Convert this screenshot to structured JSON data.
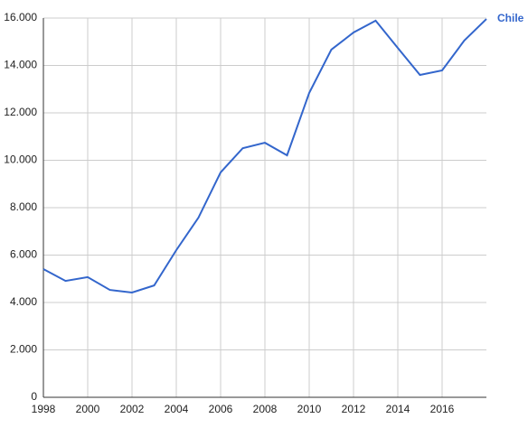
{
  "chart_data": {
    "type": "line",
    "x": [
      1998,
      1999,
      2000,
      2001,
      2002,
      2003,
      2004,
      2005,
      2006,
      2007,
      2008,
      2009,
      2010,
      2011,
      2012,
      2013,
      2014,
      2015,
      2016,
      2017,
      2018
    ],
    "series": [
      {
        "name": "Chile",
        "color": "#3366cc",
        "values": [
          5410,
          4910,
          5070,
          4530,
          4420,
          4720,
          6210,
          7580,
          9490,
          10510,
          10740,
          10210,
          12840,
          14670,
          15390,
          15890,
          14740,
          13600,
          13790,
          15050,
          15960
        ]
      }
    ],
    "xlim": [
      1998,
      2018
    ],
    "xticks": [
      1998,
      2000,
      2002,
      2004,
      2006,
      2008,
      2010,
      2012,
      2014,
      2016
    ],
    "ylim": [
      0,
      16000
    ],
    "yticks": [
      0,
      {
        "value": 2000,
        "label": "2.000"
      },
      {
        "value": 4000,
        "label": "4.000"
      },
      {
        "value": 6000,
        "label": "6.000"
      },
      {
        "value": 8000,
        "label": "8.000"
      },
      {
        "value": 10000,
        "label": "10.000"
      },
      {
        "value": 12000,
        "label": "12.000"
      },
      {
        "value": 14000,
        "label": "14.000"
      },
      {
        "value": 16000,
        "label": "16.000"
      }
    ],
    "grid": true,
    "legend": "line-end"
  }
}
